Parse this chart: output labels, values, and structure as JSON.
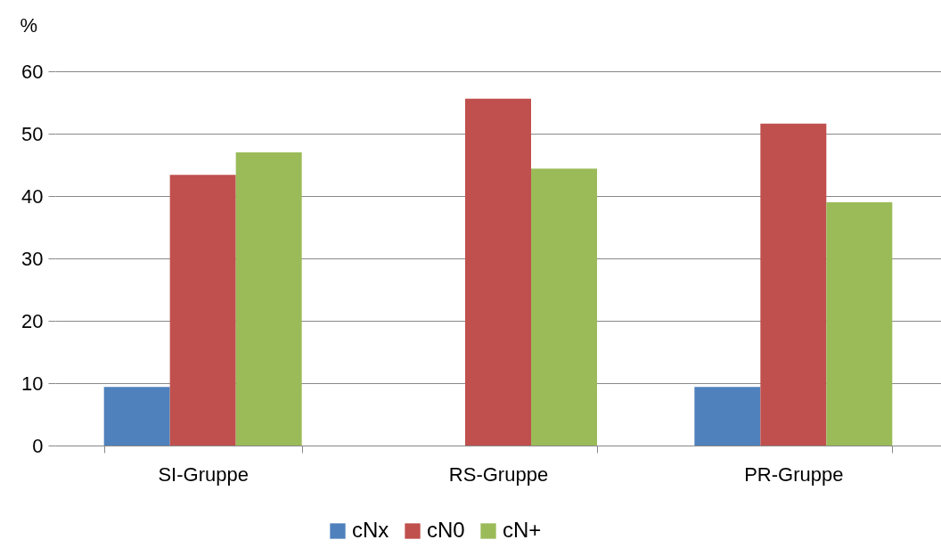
{
  "chart_data": {
    "type": "bar",
    "ylabel": "%",
    "categories": [
      "SI-Gruppe",
      "RS-Gruppe",
      "PR-Gruppe"
    ],
    "series": [
      {
        "name": "cNx",
        "color": "#4f81bd",
        "values": [
          9.4,
          0,
          9.4
        ]
      },
      {
        "name": "cN0",
        "color": "#c0504d",
        "values": [
          43.4,
          55.6,
          51.6
        ]
      },
      {
        "name": "cN+",
        "color": "#9bbb59",
        "values": [
          47.0,
          44.4,
          39.0
        ]
      }
    ],
    "ylim": [
      0,
      60
    ],
    "yticks": [
      0,
      10,
      20,
      30,
      40,
      50,
      60
    ],
    "grid": "y",
    "legend": "bottom"
  }
}
